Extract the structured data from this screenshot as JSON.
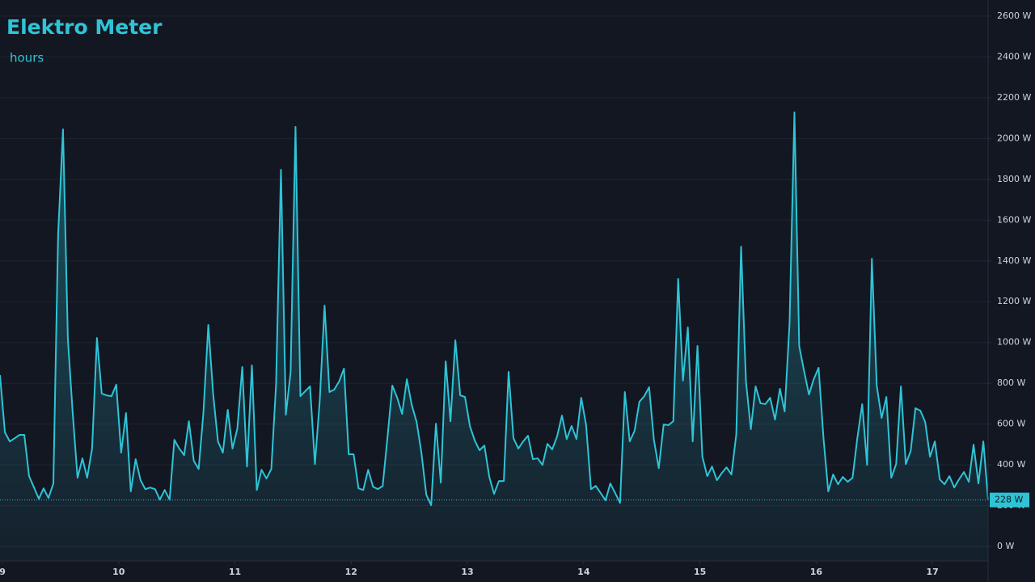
{
  "chart_data": {
    "type": "area",
    "title": "Elektro Meter",
    "subtitle": "hours",
    "color": "#2ec4d6",
    "background": "#131722",
    "grid": true,
    "current_value_label": "228 W",
    "xlim": [
      8.979,
      17.479
    ],
    "ylim": [
      -71,
      2679
    ],
    "xticks": [
      9,
      10,
      11,
      12,
      13,
      14,
      15,
      16,
      17
    ],
    "yticks": [
      {
        "value": 0,
        "label": "0 W"
      },
      {
        "value": 200,
        "label": "200 W"
      },
      {
        "value": 400,
        "label": "400 W"
      },
      {
        "value": 600,
        "label": "600 W"
      },
      {
        "value": 800,
        "label": "800 W"
      },
      {
        "value": 1000,
        "label": "1000 W"
      },
      {
        "value": 1200,
        "label": "1200 W"
      },
      {
        "value": 1400,
        "label": "1400 W"
      },
      {
        "value": 1600,
        "label": "1600 W"
      },
      {
        "value": 1800,
        "label": "1800 W"
      },
      {
        "value": 2000,
        "label": "2000 W"
      },
      {
        "value": 2200,
        "label": "2200 W"
      },
      {
        "value": 2400,
        "label": "2400 W"
      },
      {
        "value": 2600,
        "label": "2600 W"
      }
    ],
    "x": [
      8.979,
      9.021,
      9.063,
      9.104,
      9.146,
      9.188,
      9.229,
      9.271,
      9.313,
      9.354,
      9.396,
      9.438,
      9.479,
      9.521,
      9.563,
      9.604,
      9.646,
      9.688,
      9.729,
      9.771,
      9.813,
      9.854,
      9.896,
      9.938,
      9.979,
      10.021,
      10.063,
      10.104,
      10.146,
      10.188,
      10.229,
      10.271,
      10.313,
      10.354,
      10.396,
      10.438,
      10.479,
      10.521,
      10.563,
      10.604,
      10.646,
      10.688,
      10.729,
      10.771,
      10.813,
      10.854,
      10.896,
      10.938,
      10.979,
      11.021,
      11.063,
      11.104,
      11.146,
      11.188,
      11.229,
      11.271,
      11.313,
      11.354,
      11.396,
      11.438,
      11.479,
      11.521,
      11.563,
      11.604,
      11.646,
      11.688,
      11.729,
      11.771,
      11.813,
      11.854,
      11.896,
      11.938,
      11.979,
      12.021,
      12.063,
      12.104,
      12.146,
      12.188,
      12.229,
      12.271,
      12.313,
      12.354,
      12.396,
      12.438,
      12.479,
      12.521,
      12.563,
      12.604,
      12.646,
      12.688,
      12.729,
      12.771,
      12.813,
      12.854,
      12.896,
      12.938,
      12.979,
      13.021,
      13.063,
      13.104,
      13.146,
      13.188,
      13.229,
      13.271,
      13.313,
      13.354,
      13.396,
      13.438,
      13.479,
      13.521,
      13.563,
      13.604,
      13.646,
      13.688,
      13.729,
      13.771,
      13.813,
      13.854,
      13.896,
      13.938,
      13.979,
      14.021,
      14.063,
      14.104,
      14.146,
      14.188,
      14.229,
      14.271,
      14.313,
      14.354,
      14.396,
      14.438,
      14.479,
      14.521,
      14.563,
      14.604,
      14.646,
      14.688,
      14.729,
      14.771,
      14.813,
      14.854,
      14.896,
      14.938,
      14.979,
      15.021,
      15.063,
      15.104,
      15.146,
      15.188,
      15.229,
      15.271,
      15.313,
      15.354,
      15.396,
      15.438,
      15.479,
      15.521,
      15.563,
      15.604,
      15.646,
      15.688,
      15.729,
      15.771,
      15.813,
      15.854,
      15.896,
      15.938,
      15.979,
      16.021,
      16.063,
      16.104,
      16.146,
      16.188,
      16.229,
      16.271,
      16.313,
      16.354,
      16.396,
      16.438,
      16.479,
      16.521,
      16.563,
      16.604,
      16.646,
      16.688,
      16.729,
      16.771,
      16.813,
      16.854,
      16.896,
      16.938,
      16.979,
      17.021,
      17.063,
      17.104,
      17.146,
      17.188,
      17.229,
      17.271,
      17.313,
      17.354,
      17.396,
      17.438,
      17.479
    ],
    "values": [
      840,
      560,
      515,
      530,
      547,
      547,
      345,
      290,
      234,
      285,
      238,
      309,
      1530,
      2045,
      1015,
      658,
      337,
      432,
      337,
      480,
      1022,
      750,
      741,
      737,
      793,
      460,
      654,
      270,
      428,
      325,
      281,
      289,
      281,
      230,
      277,
      230,
      523,
      480,
      448,
      614,
      420,
      380,
      658,
      1086,
      745,
      515,
      460,
      670,
      480,
      579,
      880,
      392,
      888,
      277,
      376,
      333,
      380,
      797,
      1847,
      646,
      856,
      2057,
      737,
      761,
      785,
      404,
      709,
      1181,
      757,
      769,
      809,
      872,
      452,
      452,
      285,
      277,
      376,
      293,
      281,
      297,
      539,
      789,
      729,
      650,
      820,
      694,
      610,
      460,
      254,
      202,
      602,
      313,
      908,
      614,
      1011,
      741,
      733,
      591,
      519,
      472,
      495,
      341,
      258,
      321,
      321,
      856,
      531,
      480,
      515,
      543,
      428,
      432,
      400,
      503,
      476,
      539,
      642,
      527,
      591,
      527,
      729,
      595,
      281,
      297,
      262,
      226,
      309,
      262,
      214,
      757,
      515,
      567,
      709,
      737,
      781,
      523,
      384,
      598,
      595,
      614,
      1312,
      813,
      1074,
      515,
      983,
      440,
      345,
      392,
      325,
      360,
      388,
      353,
      551,
      1470,
      809,
      575,
      785,
      702,
      698,
      729,
      622,
      773,
      662,
      1094,
      2128,
      983,
      860,
      745,
      820,
      876,
      531,
      270,
      353,
      305,
      341,
      317,
      337,
      531,
      698,
      400,
      1411,
      789,
      630,
      733,
      337,
      404,
      785,
      404,
      468,
      678,
      666,
      610,
      440,
      515,
      329,
      305,
      345,
      289,
      329,
      365,
      317,
      499,
      309,
      515,
      228
    ]
  }
}
